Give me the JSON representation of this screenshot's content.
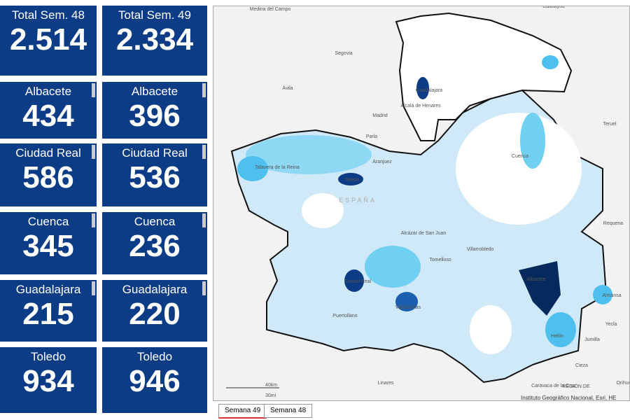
{
  "cards": [
    {
      "label": "Total Sem. 48",
      "value": "2.514"
    },
    {
      "label": "Total Sem. 49",
      "value": "2.334"
    },
    {
      "label": "Albacete",
      "value": "434"
    },
    {
      "label": "Albacete",
      "value": "396"
    },
    {
      "label": "Ciudad Real",
      "value": "586"
    },
    {
      "label": "Ciudad Real",
      "value": "536"
    },
    {
      "label": "Cuenca",
      "value": "345"
    },
    {
      "label": "Cuenca",
      "value": "236"
    },
    {
      "label": "Guadalajara",
      "value": "215"
    },
    {
      "label": "Guadalajara",
      "value": "220"
    },
    {
      "label": "Toledo",
      "value": "934"
    },
    {
      "label": "Toledo",
      "value": "946"
    }
  ],
  "map": {
    "labels": [
      "Calatayud",
      "Medina del Campo",
      "Segovia",
      "Ávila",
      "Guadalajara",
      "Alcalá de Henares",
      "Madrid",
      "Parla",
      "Teruel",
      "Cuenca",
      "Talavera de la Reina",
      "Toledo",
      "Aranjuez",
      "ESPAÑA",
      "Requena",
      "Alcázar de San Juan",
      "Tomelloso",
      "Villarrobledo",
      "Ciudad Real",
      "Albacete",
      "Almansa",
      "Valdepeñas",
      "Puertollano",
      "Yecla",
      "Hellín",
      "Jumilla",
      "Cieza",
      "Linares",
      "Caravaca de la Cruz",
      "REGIÓN DE",
      "Orihue"
    ],
    "scale": [
      "40km",
      "30mi"
    ],
    "attribution": "Instituto Geográfico Nacional, Esri, HE"
  },
  "tabs": [
    "Semana 49",
    "Semana 48"
  ]
}
